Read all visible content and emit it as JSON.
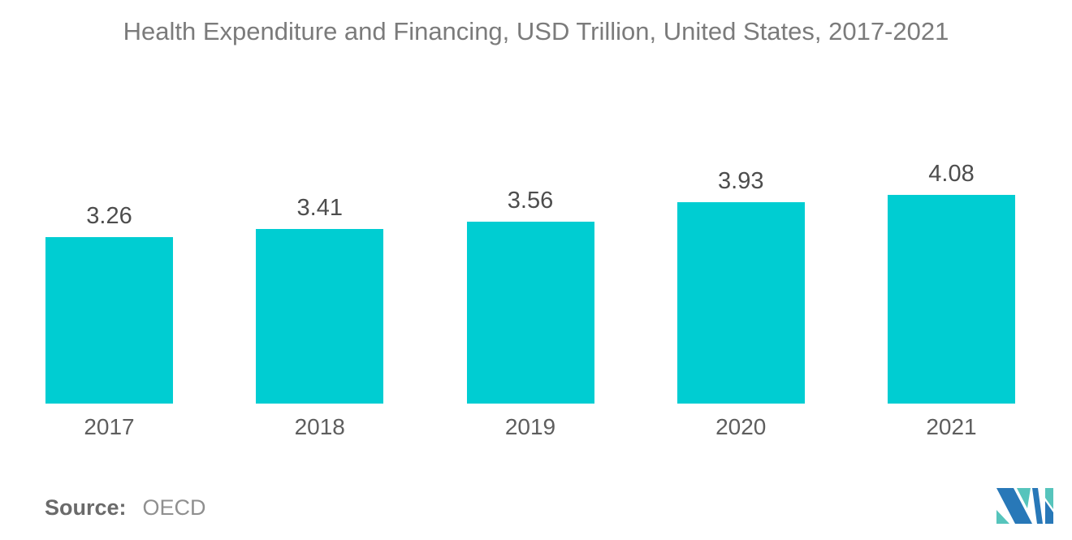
{
  "chart_data": {
    "type": "bar",
    "title": "Health Expenditure and Financing, USD Trillion, United States, 2017-2021",
    "categories": [
      "2017",
      "2018",
      "2019",
      "2020",
      "2021"
    ],
    "values": [
      3.26,
      3.41,
      3.56,
      3.93,
      4.08
    ],
    "value_labels": [
      "3.26",
      "3.41",
      "3.56",
      "3.93",
      "4.08"
    ],
    "xlabel": "",
    "ylabel": "",
    "ylim": [
      0,
      4.08
    ],
    "grid": false,
    "legend": "none",
    "axes_hidden": true,
    "bar_color": "#00cdd2",
    "title_color": "#7b7b7b",
    "value_label_color": "#4d4d4d",
    "tick_label_color": "#5e5e5e"
  },
  "source": {
    "label": "Source:",
    "value": "OECD"
  },
  "logo": {
    "name": "mordor-intelligence-logo",
    "color_blue": "#2878b8",
    "color_teal": "#56c4bc"
  }
}
